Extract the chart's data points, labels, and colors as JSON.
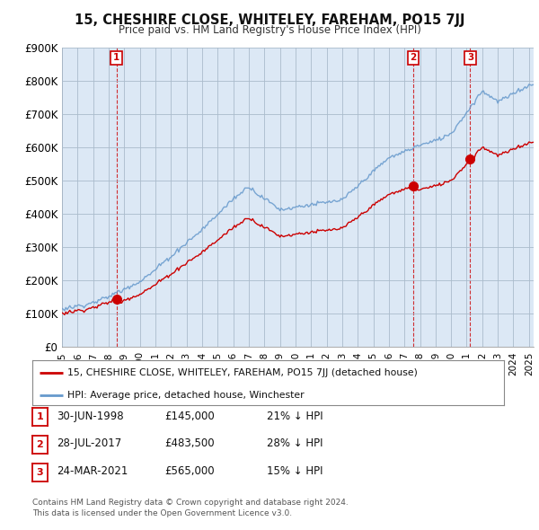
{
  "title": "15, CHESHIRE CLOSE, WHITELEY, FAREHAM, PO15 7JJ",
  "subtitle": "Price paid vs. HM Land Registry's House Price Index (HPI)",
  "ylabel_ticks": [
    "£0",
    "£100K",
    "£200K",
    "£300K",
    "£400K",
    "£500K",
    "£600K",
    "£700K",
    "£800K",
    "£900K"
  ],
  "ylim": [
    0,
    900000
  ],
  "xlim_start": 1995.0,
  "xlim_end": 2025.3,
  "chart_bg": "#dce8f5",
  "hpi_color": "#6699cc",
  "price_color": "#cc0000",
  "sale_dates": [
    1998.497,
    2017.569,
    2021.228
  ],
  "sale_prices": [
    145000,
    483500,
    565000
  ],
  "sale_labels": [
    "1",
    "2",
    "3"
  ],
  "legend_label_price": "15, CHESHIRE CLOSE, WHITELEY, FAREHAM, PO15 7JJ (detached house)",
  "legend_label_hpi": "HPI: Average price, detached house, Winchester",
  "table_rows": [
    [
      "1",
      "30-JUN-1998",
      "£145,000",
      "21% ↓ HPI"
    ],
    [
      "2",
      "28-JUL-2017",
      "£483,500",
      "28% ↓ HPI"
    ],
    [
      "3",
      "24-MAR-2021",
      "£565,000",
      "15% ↓ HPI"
    ]
  ],
  "footnote": "Contains HM Land Registry data © Crown copyright and database right 2024.\nThis data is licensed under the Open Government Licence v3.0.",
  "background_color": "#ffffff",
  "grid_color": "#aabbcc"
}
